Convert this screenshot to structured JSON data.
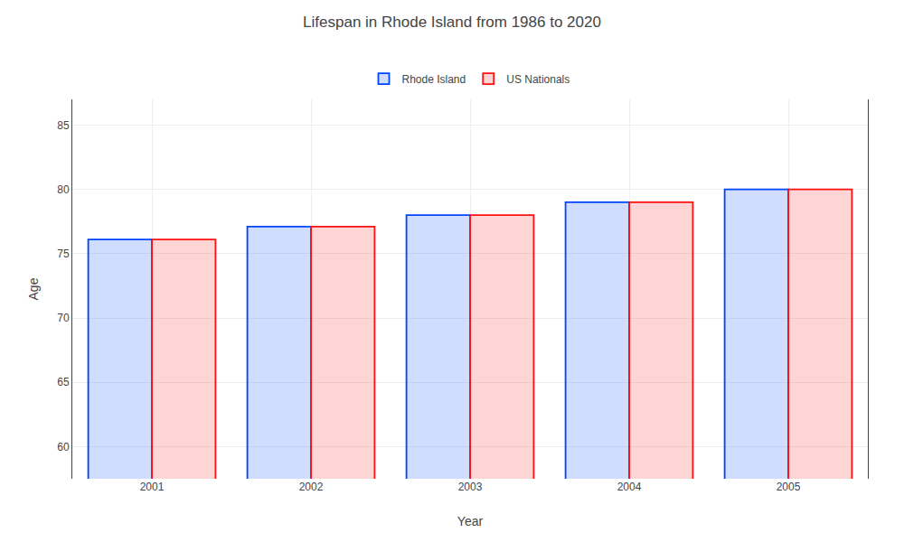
{
  "chart_data": {
    "type": "bar",
    "title": "Lifespan in Rhode Island from 1986 to 2020",
    "x_label": "Year",
    "y_label": "Age",
    "categories": [
      "2001",
      "2002",
      "2003",
      "2004",
      "2005"
    ],
    "series": [
      {
        "name": "Rhode Island",
        "color": "#0044ff",
        "values": [
          76.1,
          77.1,
          78.0,
          79.0,
          80.0
        ]
      },
      {
        "name": "US Nationals",
        "color": "#ff1111",
        "values": [
          76.1,
          77.1,
          78.0,
          79.0,
          80.0
        ]
      }
    ],
    "ylim": [
      57.5,
      87
    ],
    "yticks": [
      60,
      65,
      70,
      75,
      80,
      85
    ],
    "grid": true,
    "legend": "top"
  }
}
